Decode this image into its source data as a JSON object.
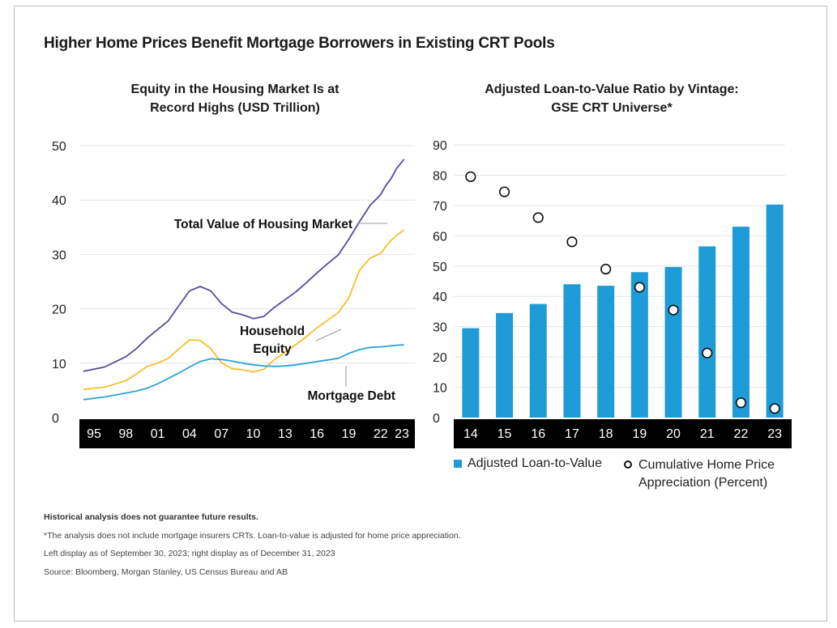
{
  "title": "Higher Home Prices Benefit Mortgage Borrowers in Existing CRT Pools",
  "left_chart": {
    "title_line1": "Equity in the Housing Market Is at",
    "title_line2": "Record Highs (USD Trillion)"
  },
  "right_chart": {
    "title_line1": "Adjusted Loan-to-Value Ratio by Vintage:",
    "title_line2": "GSE CRT Universe*"
  },
  "legend": {
    "bar_label": "Adjusted Loan-to-Value",
    "dot_label_line1": "Cumulative Home Price",
    "dot_label_line2": "Appreciation (Percent)"
  },
  "notes": {
    "disclaimer": "Historical analysis does not guarantee future results.",
    "footnote": "*The analysis does not include mortgage insurers CRTs. Loan-to-value is adjusted for home price appreciation.",
    "as_of": "Left display as of September 30, 2023; right display as of December 31, 2023",
    "source": "Source: Bloomberg, Morgan Stanley, US Census Bureau and AB"
  },
  "colors": {
    "total_value": "#5b4a9b",
    "household_equity": "#f6bf2a",
    "mortgage_debt": "#2da3d8",
    "bar": "#1f9bd7",
    "axis_band": "#000000",
    "gridline": "#e6e6e6"
  },
  "chart_data": [
    {
      "type": "line",
      "title": "Equity in the Housing Market Is at Record Highs (USD Trillion)",
      "x_tick_labels": [
        "95",
        "98",
        "01",
        "04",
        "07",
        "10",
        "13",
        "16",
        "19",
        "22",
        "23"
      ],
      "x_tick_years": [
        1995,
        1998,
        2001,
        2004,
        2007,
        2010,
        2013,
        2016,
        2019,
        2022,
        2024
      ],
      "ylim": [
        0,
        50
      ],
      "y_ticks": [
        0,
        10,
        20,
        30,
        40,
        50
      ],
      "grid": true,
      "series": [
        {
          "name": "Total Value of Housing Market",
          "x": [
            1994,
            1996,
            1998,
            1999,
            2000,
            2001,
            2002,
            2003,
            2004,
            2005,
            2006,
            2007,
            2008,
            2009,
            2010,
            2011,
            2012,
            2013,
            2014,
            2015,
            2016,
            2017,
            2018,
            2019,
            2020,
            2021,
            2022,
            2022.5,
            2023,
            2023.5,
            2024.2
          ],
          "values": [
            8.5,
            9.3,
            11.2,
            12.7,
            14.6,
            16.2,
            17.8,
            20.6,
            23.3,
            24.1,
            23.3,
            21.0,
            19.4,
            18.9,
            18.2,
            18.6,
            20.3,
            21.7,
            23.1,
            24.8,
            26.6,
            28.3,
            29.9,
            32.8,
            36.0,
            39.0,
            41.0,
            42.7,
            44.0,
            45.8,
            47.5
          ],
          "color": "#5b4a9b",
          "label": "Total Value of Housing Market"
        },
        {
          "name": "Household Equity",
          "x": [
            1994,
            1996,
            1998,
            1999,
            2000,
            2001,
            2002,
            2003,
            2004,
            2005,
            2006,
            2007,
            2008,
            2009,
            2010,
            2011,
            2012,
            2013,
            2014,
            2015,
            2016,
            2017,
            2018,
            2019,
            2020,
            2021,
            2022,
            2022.5,
            2023,
            2023.5,
            2024.2
          ],
          "values": [
            5.2,
            5.6,
            6.8,
            8.0,
            9.4,
            10.0,
            10.9,
            12.6,
            14.3,
            14.2,
            12.7,
            10.1,
            9.0,
            8.8,
            8.4,
            8.9,
            10.7,
            12.0,
            13.4,
            14.9,
            16.5,
            17.9,
            19.3,
            22.0,
            27.1,
            29.3,
            30.2,
            31.5,
            32.6,
            33.5,
            34.5
          ],
          "color": "#f6bf2a",
          "label": "Household Equity"
        },
        {
          "name": "Mortgage Debt",
          "x": [
            1994,
            1996,
            1998,
            1999,
            2000,
            2001,
            2002,
            2003,
            2004,
            2005,
            2006,
            2007,
            2008,
            2009,
            2010,
            2011,
            2012,
            2013,
            2014,
            2015,
            2016,
            2017,
            2018,
            2019,
            2020,
            2021,
            2022,
            2022.5,
            2023,
            2023.5,
            2024.2
          ],
          "values": [
            3.3,
            3.8,
            4.5,
            4.9,
            5.4,
            6.2,
            7.2,
            8.2,
            9.3,
            10.3,
            10.8,
            10.7,
            10.4,
            10.0,
            9.7,
            9.5,
            9.4,
            9.5,
            9.7,
            10.0,
            10.3,
            10.6,
            10.9,
            11.8,
            12.5,
            12.9,
            13.0,
            13.1,
            13.2,
            13.3,
            13.4
          ],
          "color": "#2da3d8",
          "label": "Mortgage Debt"
        }
      ],
      "annotations": [
        {
          "text_line1": "Total Value of Housing Market",
          "text_line2": "",
          "series": "Total Value of Housing Market"
        },
        {
          "text_line1": "Household",
          "text_line2": "Equity",
          "series": "Household Equity"
        },
        {
          "text_line1": "Mortgage Debt",
          "text_line2": "",
          "series": "Mortgage Debt"
        }
      ]
    },
    {
      "type": "bar",
      "title": "Adjusted Loan-to-Value Ratio by Vintage: GSE CRT Universe*",
      "categories": [
        "14",
        "15",
        "16",
        "17",
        "18",
        "19",
        "20",
        "21",
        "22",
        "23"
      ],
      "ylim": [
        0,
        90
      ],
      "y_ticks": [
        0,
        10,
        20,
        30,
        40,
        50,
        60,
        70,
        80,
        90
      ],
      "grid": true,
      "series": [
        {
          "name": "Adjusted Loan-to-Value",
          "type": "bar",
          "values": [
            29.5,
            34.5,
            37.5,
            44.0,
            43.5,
            48.0,
            49.7,
            56.5,
            63.0,
            70.3
          ]
        },
        {
          "name": "Cumulative Home Price Appreciation (Percent)",
          "type": "scatter",
          "values": [
            79.5,
            74.5,
            66.0,
            58.0,
            49.0,
            43.0,
            35.5,
            21.3,
            4.9,
            3.0
          ]
        }
      ],
      "legend": "bottom"
    }
  ]
}
